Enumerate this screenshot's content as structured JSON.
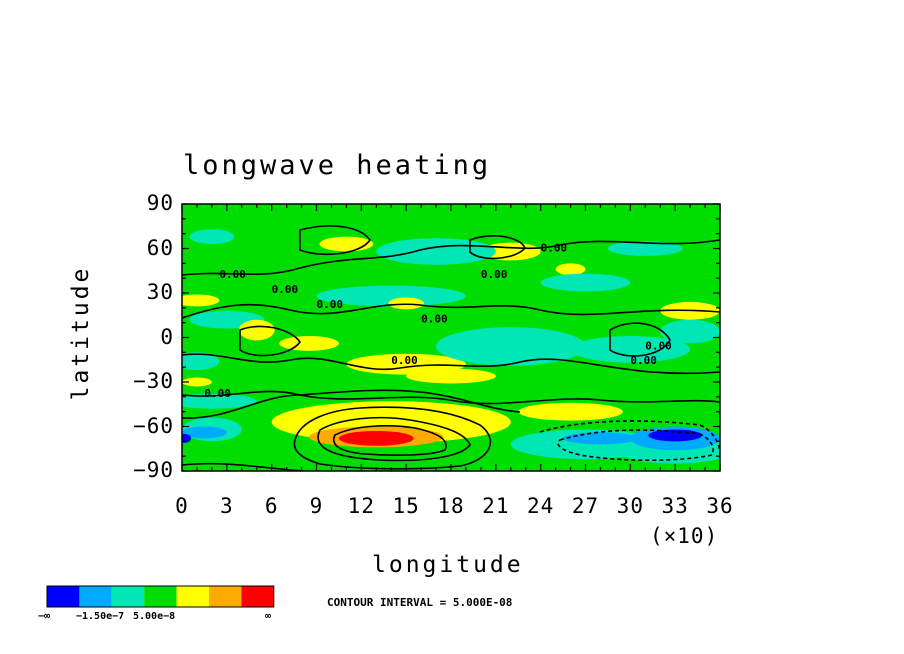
{
  "chart_data": {
    "type": "heatmap",
    "title": "longwave heating",
    "xlabel": "longitude",
    "ylabel": "latitude",
    "x_multiplier_label": "(×10)",
    "xlim": [
      0,
      36
    ],
    "ylim": [
      -90,
      90
    ],
    "x_ticks": [
      "0",
      "3",
      "6",
      "9",
      "12",
      "15",
      "18",
      "21",
      "24",
      "27",
      "30",
      "33",
      "36"
    ],
    "y_ticks": [
      "90",
      "60",
      "30",
      "0",
      "−30",
      "−60",
      "−90"
    ],
    "contour_interval_text": "CONTOUR INTERVAL = 5.000E-08",
    "contour_labels": [
      "0.00",
      "0.00",
      "0.00",
      "0.00",
      "0.00",
      "0.00",
      "0.00",
      "0.00",
      "0.00",
      "0.00"
    ],
    "legend": {
      "colors": [
        "#0000ff",
        "#00aaff",
        "#00e6b4",
        "#00dd00",
        "#ffff00",
        "#ffaa00",
        "#ff0000"
      ],
      "labels": [
        "−∞",
        "−1.50e−7",
        "5.00e−8",
        "∞"
      ]
    },
    "regions": [
      {
        "level": 2,
        "lon": 2,
        "lat": 68,
        "rlon": 1.5,
        "rlat": 5
      },
      {
        "level": 4,
        "lon": 11,
        "lat": 63,
        "rlon": 1.8,
        "rlat": 5
      },
      {
        "level": 4,
        "lon": 22,
        "lat": 58,
        "rlon": 2,
        "rlat": 6
      },
      {
        "level": 4,
        "lon": 26,
        "lat": 46,
        "rlon": 1,
        "rlat": 4
      },
      {
        "level": 2,
        "lon": 17,
        "lat": 58,
        "rlon": 4,
        "rlat": 9
      },
      {
        "level": 2,
        "lon": 31,
        "lat": 60,
        "rlon": 2.5,
        "rlat": 5
      },
      {
        "level": 2,
        "lon": 27,
        "lat": 37,
        "rlon": 3,
        "rlat": 6
      },
      {
        "level": 2,
        "lon": 14,
        "lat": 28,
        "rlon": 5,
        "rlat": 7
      },
      {
        "level": 2,
        "lon": 3,
        "lat": 12,
        "rlon": 2.5,
        "rlat": 6
      },
      {
        "level": 4,
        "lon": 1,
        "lat": 25,
        "rlon": 1.5,
        "rlat": 4
      },
      {
        "level": 4,
        "lon": 15,
        "lat": 23,
        "rlon": 1.2,
        "rlat": 4
      },
      {
        "level": 4,
        "lon": 5,
        "lat": 5,
        "rlon": 1.2,
        "rlat": 7
      },
      {
        "level": 4,
        "lon": 8.5,
        "lat": -4,
        "rlon": 2,
        "rlat": 5
      },
      {
        "level": 4,
        "lon": 15,
        "lat": -18,
        "rlon": 4,
        "rlat": 7
      },
      {
        "level": 4,
        "lon": 18,
        "lat": -26,
        "rlon": 3,
        "rlat": 5
      },
      {
        "level": 2,
        "lon": 22,
        "lat": -6,
        "rlon": 5,
        "rlat": 13
      },
      {
        "level": 2,
        "lon": 30,
        "lat": -8,
        "rlon": 4,
        "rlat": 9
      },
      {
        "level": 2,
        "lon": 34,
        "lat": 4,
        "rlon": 2,
        "rlat": 8
      },
      {
        "level": 4,
        "lon": 34,
        "lat": 18,
        "rlon": 2,
        "rlat": 6
      },
      {
        "level": 2,
        "lon": 1,
        "lat": -16,
        "rlon": 1.5,
        "rlat": 6
      },
      {
        "level": 2,
        "lon": 2,
        "lat": -43,
        "rlon": 3,
        "rlat": 5
      },
      {
        "level": 4,
        "lon": 1,
        "lat": -30,
        "rlon": 1,
        "rlat": 3
      },
      {
        "level": 4,
        "lon": 14,
        "lat": -57,
        "rlon": 8,
        "rlat": 14
      },
      {
        "level": 4,
        "lon": 26,
        "lat": -50,
        "rlon": 3.5,
        "rlat": 6
      },
      {
        "level": 2,
        "lon": 27,
        "lat": -72,
        "rlon": 5,
        "rlat": 10
      },
      {
        "level": 2,
        "lon": 33,
        "lat": -75,
        "rlon": 4,
        "rlat": 10
      },
      {
        "level": 1,
        "lon": 28,
        "lat": -68,
        "rlon": 2.5,
        "rlat": 4
      },
      {
        "level": 1,
        "lon": 33,
        "lat": -68,
        "rlon": 3,
        "rlat": 8
      },
      {
        "level": 0,
        "lon": 33,
        "lat": -66,
        "rlon": 1.8,
        "rlat": 4
      },
      {
        "level": 2,
        "lon": 2,
        "lat": -62,
        "rlon": 2,
        "rlat": 8
      },
      {
        "level": 1,
        "lon": 1.5,
        "lat": -64,
        "rlon": 1.5,
        "rlat": 4
      },
      {
        "level": 0,
        "lon": 0.2,
        "lat": -68,
        "rlon": 0.4,
        "rlat": 3
      },
      {
        "level": 5,
        "lon": 13,
        "lat": -67,
        "rlon": 4.5,
        "rlat": 7
      },
      {
        "level": 6,
        "lon": 13,
        "lat": -68,
        "rlon": 2.5,
        "rlat": 5
      }
    ]
  }
}
